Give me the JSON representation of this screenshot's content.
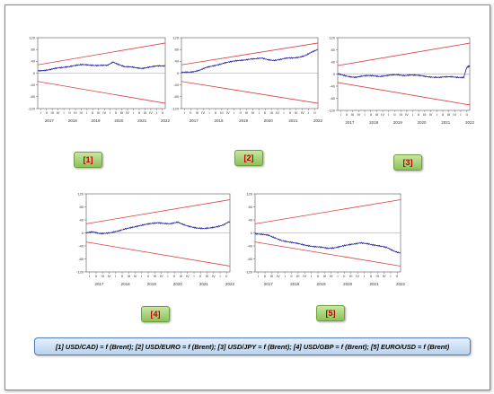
{
  "caption": "[1] USD/CAD) = f (Brent); [2] USD/EURO = f (Brent); [3] USD/JPY = f (Brent); [4] USD/GBP = f (Brent); [5] EURO/USD = f (Brent)",
  "colors": {
    "series": "#1a1a9a",
    "bounds": "#d94040",
    "zero_line": "#9a9a9a",
    "label_text": "#c00000"
  },
  "chart_data": [
    {
      "type": "line",
      "label": "[1]",
      "ylim": [
        -120,
        120
      ],
      "yticks": [
        120,
        80,
        40,
        0,
        -40,
        -80,
        -120
      ],
      "quarters": [
        "I",
        "II",
        "III",
        "IV",
        "I",
        "II",
        "III",
        "IV",
        "I",
        "II",
        "III",
        "IV",
        "I",
        "II",
        "III",
        "IV",
        "I",
        "II",
        "III",
        "IV",
        "I",
        "II"
      ],
      "years": [
        "2017",
        "2018",
        "2019",
        "2020",
        "2021",
        "2022"
      ],
      "x": [
        0,
        1,
        2,
        3,
        4,
        5,
        6,
        7,
        8,
        9,
        10,
        11,
        12,
        13,
        14,
        15,
        16,
        17,
        18,
        19,
        20,
        21,
        22
      ],
      "series": [
        {
          "values": [
            8,
            10,
            12,
            15,
            18,
            22,
            25,
            27,
            28,
            28,
            27,
            26,
            25,
            38,
            30,
            22,
            20,
            18,
            17,
            20,
            22,
            24,
            25
          ]
        }
      ],
      "upper_bound": [
        [
          0,
          28
        ],
        [
          22,
          102
        ]
      ],
      "lower_bound": [
        [
          0,
          -28
        ],
        [
          22,
          -102
        ]
      ]
    },
    {
      "type": "line",
      "label": "[2]",
      "ylim": [
        -120,
        120
      ],
      "yticks": [
        120,
        80,
        40,
        0,
        -40,
        -80,
        -120
      ],
      "quarters": [
        "I",
        "II",
        "III",
        "IV",
        "I",
        "II",
        "III",
        "IV",
        "I",
        "II",
        "III",
        "IV",
        "I",
        "II",
        "III",
        "IV",
        "I",
        "II",
        "III",
        "IV",
        "I",
        "II"
      ],
      "years": [
        "2017",
        "2018",
        "2019",
        "2020",
        "2021",
        "2022"
      ],
      "x": [
        0,
        1,
        2,
        3,
        4,
        5,
        6,
        7,
        8,
        9,
        10,
        11,
        12,
        13,
        14,
        15,
        16,
        17,
        18,
        19,
        20,
        21,
        22
      ],
      "series": [
        {
          "values": [
            2,
            4,
            6,
            10,
            18,
            24,
            30,
            35,
            38,
            42,
            45,
            48,
            48,
            50,
            46,
            44,
            46,
            50,
            52,
            55,
            60,
            70,
            80
          ]
        }
      ],
      "upper_bound": [
        [
          0,
          28
        ],
        [
          22,
          102
        ]
      ],
      "lower_bound": [
        [
          0,
          -28
        ],
        [
          22,
          -102
        ]
      ]
    },
    {
      "type": "line",
      "label": "[3]",
      "ylim": [
        -120,
        120
      ],
      "yticks": [
        120,
        80,
        40,
        0,
        -40,
        -80,
        -120
      ],
      "quarters": [
        "I",
        "II",
        "III",
        "IV",
        "I",
        "II",
        "III",
        "IV",
        "I",
        "II",
        "III",
        "IV",
        "I",
        "II",
        "III",
        "IV",
        "I",
        "II",
        "III",
        "IV",
        "I",
        "II"
      ],
      "years": [
        "2017",
        "2018",
        "2019",
        "2020",
        "2021",
        "2022"
      ],
      "x": [
        0,
        1,
        2,
        3,
        4,
        5,
        6,
        7,
        8,
        9,
        10,
        11,
        12,
        13,
        14,
        15,
        16,
        17,
        18,
        19,
        20,
        21,
        21.5,
        22
      ],
      "series": [
        {
          "values": [
            0,
            -5,
            -8,
            -10,
            -8,
            -6,
            -5,
            -7,
            -6,
            -4,
            -2,
            -4,
            -3,
            -5,
            -6,
            -8,
            -10,
            -12,
            -10,
            -8,
            -10,
            -12,
            20,
            28
          ]
        }
      ],
      "upper_bound": [
        [
          0,
          28
        ],
        [
          22,
          102
        ]
      ],
      "lower_bound": [
        [
          0,
          -28
        ],
        [
          22,
          -102
        ]
      ]
    },
    {
      "type": "line",
      "label": "[4]",
      "ylim": [
        -120,
        120
      ],
      "yticks": [
        120,
        80,
        40,
        0,
        -40,
        -80,
        -120
      ],
      "quarters": [
        "I",
        "II",
        "III",
        "IV",
        "I",
        "II",
        "III",
        "IV",
        "I",
        "II",
        "III",
        "IV",
        "I",
        "II",
        "III",
        "IV",
        "I",
        "II",
        "III",
        "IV",
        "I",
        "II"
      ],
      "years": [
        "2017",
        "2018",
        "2019",
        "2020",
        "2021",
        "2022"
      ],
      "x": [
        0,
        1,
        2,
        3,
        4,
        5,
        6,
        7,
        8,
        9,
        10,
        11,
        12,
        13,
        14,
        15,
        16,
        17,
        18,
        19,
        20,
        21,
        22
      ],
      "series": [
        {
          "values": [
            0,
            2,
            -2,
            0,
            2,
            5,
            12,
            18,
            22,
            25,
            28,
            32,
            30,
            28,
            32,
            25,
            20,
            15,
            12,
            15,
            20,
            25,
            35
          ]
        }
      ],
      "upper_bound": [
        [
          0,
          28
        ],
        [
          22,
          102
        ]
      ],
      "lower_bound": [
        [
          0,
          -28
        ],
        [
          22,
          -102
        ]
      ]
    },
    {
      "type": "line",
      "label": "[5]",
      "ylim": [
        -120,
        120
      ],
      "yticks": [
        120,
        80,
        40,
        0,
        -40,
        -80,
        -120
      ],
      "quarters": [
        "I",
        "II",
        "III",
        "IV",
        "I",
        "II",
        "III",
        "IV",
        "I",
        "II",
        "III",
        "IV",
        "I",
        "II",
        "III",
        "IV",
        "I",
        "II",
        "III",
        "IV",
        "I",
        "II"
      ],
      "years": [
        "2017",
        "2018",
        "2019",
        "2020",
        "2021",
        "2022"
      ],
      "x": [
        0,
        1,
        2,
        3,
        4,
        5,
        6,
        7,
        8,
        9,
        10,
        11,
        12,
        13,
        14,
        15,
        16,
        17,
        18,
        19,
        20,
        21,
        22
      ],
      "series": [
        {
          "values": [
            -2,
            -5,
            -8,
            -15,
            -22,
            -28,
            -32,
            -35,
            -38,
            -42,
            -45,
            -48,
            -45,
            -40,
            -38,
            -35,
            -30,
            -32,
            -38,
            -42,
            -45,
            -55,
            -62
          ]
        }
      ],
      "upper_bound": [
        [
          0,
          28
        ],
        [
          22,
          102
        ]
      ],
      "lower_bound": [
        [
          0,
          -28
        ],
        [
          22,
          -102
        ]
      ]
    }
  ]
}
